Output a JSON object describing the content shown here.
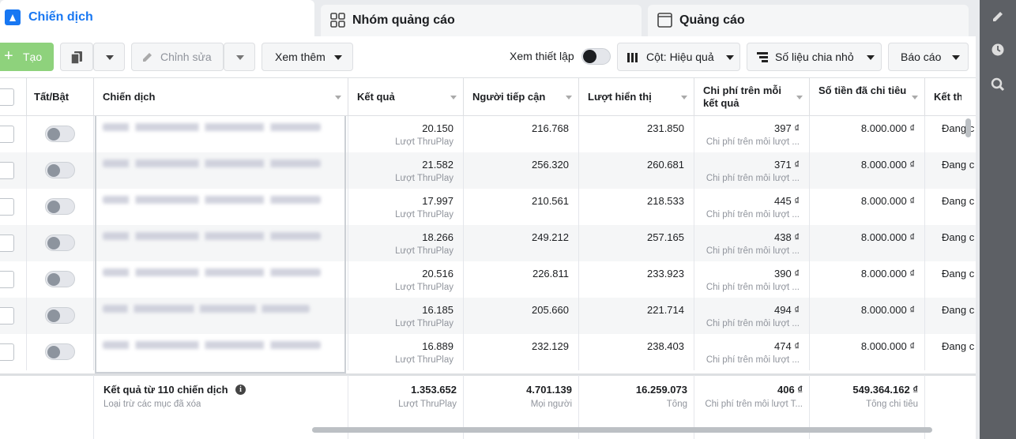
{
  "tabs": [
    "Chiến dịch",
    "Nhóm quảng cáo",
    "Quảng cáo"
  ],
  "toolbar": {
    "create": "Tạo",
    "edit": "Chỉnh sửa",
    "more": "Xem thêm",
    "view_setup": "Xem thiết lập",
    "columns": "Cột: Hiệu quả",
    "breakdown": "Số liệu chia nhỏ",
    "reports": "Báo cáo"
  },
  "table": {
    "headers": [
      "Tất/Bật",
      "Chiến dịch",
      "Kết quả",
      "Người tiếp cận",
      "Lượt hiển thị",
      "Chi phí trên mỗi kết quả",
      "Số tiền đã chi tiêu",
      "Kết thúc"
    ],
    "rows": [
      {
        "result": "20.150",
        "result_type": "Lượt ThruPlay",
        "reach": "216.768",
        "impressions": "231.850",
        "cost_per_result": "397 ₫",
        "cost_type": "Chi phí trên mỗi lượt ...",
        "spent": "8.000.000 ₫",
        "end": "Đang c"
      },
      {
        "result": "21.582",
        "result_type": "Lượt ThruPlay",
        "reach": "256.320",
        "impressions": "260.681",
        "cost_per_result": "371 ₫",
        "cost_type": "Chi phí trên mỗi lượt ...",
        "spent": "8.000.000 ₫",
        "end": "Đang c"
      },
      {
        "result": "17.997",
        "result_type": "Lượt ThruPlay",
        "reach": "210.561",
        "impressions": "218.533",
        "cost_per_result": "445 ₫",
        "cost_type": "Chi phí trên mỗi lượt ...",
        "spent": "8.000.000 ₫",
        "end": "Đang c"
      },
      {
        "result": "18.266",
        "result_type": "Lượt ThruPlay",
        "reach": "249.212",
        "impressions": "257.165",
        "cost_per_result": "438 ₫",
        "cost_type": "Chi phí trên mỗi lượt ...",
        "spent": "8.000.000 ₫",
        "end": "Đang c"
      },
      {
        "result": "20.516",
        "result_type": "Lượt ThruPlay",
        "reach": "226.811",
        "impressions": "233.923",
        "cost_per_result": "390 ₫",
        "cost_type": "Chi phí trên mỗi lượt ...",
        "spent": "8.000.000 ₫",
        "end": "Đang c"
      },
      {
        "result": "16.185",
        "result_type": "Lượt ThruPlay",
        "reach": "205.660",
        "impressions": "221.714",
        "cost_per_result": "494 ₫",
        "cost_type": "Chi phí trên mỗi lượt ...",
        "spent": "8.000.000 ₫",
        "end": "Đang c"
      },
      {
        "result": "16.889",
        "result_type": "Lượt ThruPlay",
        "reach": "232.129",
        "impressions": "238.403",
        "cost_per_result": "474 ₫",
        "cost_type": "Chi phí trên mỗi lượt ...",
        "spent": "8.000.000 ₫",
        "end": "Đang c"
      }
    ],
    "footer": {
      "title": "Kết quả từ 110 chiến dịch",
      "note": "Loại trừ các mục đã xóa",
      "result": "1.353.652",
      "result_type": "Lượt ThruPlay",
      "reach": "4.701.139",
      "reach_type": "Mọi người",
      "impressions": "16.259.073",
      "impressions_type": "Tổng",
      "cost_per_result": "406 ₫",
      "cost_type": "Chi phí trên mỗi lượt T...",
      "spent": "549.364.162 ₫",
      "spent_type": "Tổng chi tiêu"
    }
  }
}
